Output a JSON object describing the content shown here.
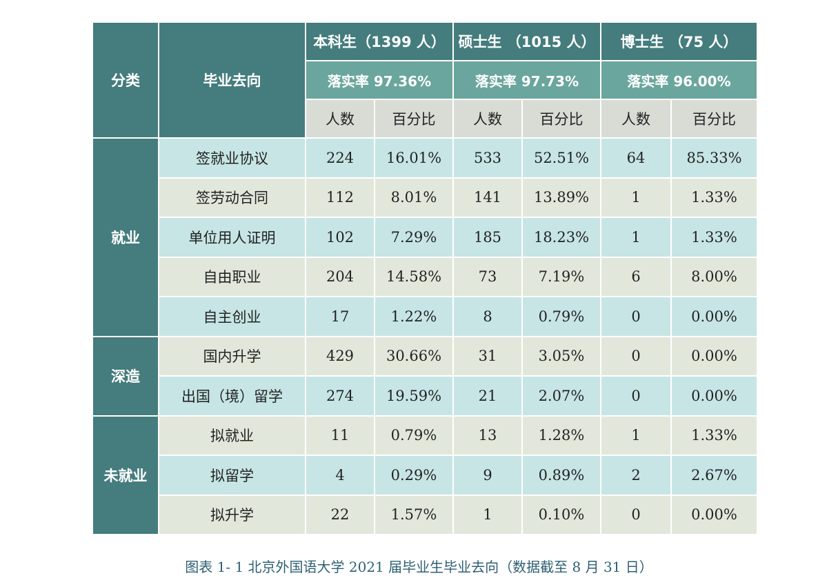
{
  "table": {
    "header": {
      "category": "分类",
      "destination": "毕业去向",
      "groups": [
        {
          "name": "本科生（1399 人）",
          "rate": "落实率 97.36%"
        },
        {
          "name": "硕士生 （1015 人）",
          "rate": "落实率 97.73%"
        },
        {
          "name": "博士生 （75 人）",
          "rate": "落实率 96.00%"
        }
      ],
      "subheaders": [
        "人数",
        "百分比",
        "人数",
        "百分比",
        "人数",
        "百分比"
      ]
    },
    "sections": [
      {
        "category": "就业",
        "rows": [
          {
            "label": "签就业协议",
            "cells": [
              "224",
              "16.01%",
              "533",
              "52.51%",
              "64",
              "85.33%"
            ]
          },
          {
            "label": "签劳动合同",
            "cells": [
              "112",
              "8.01%",
              "141",
              "13.89%",
              "1",
              "1.33%"
            ]
          },
          {
            "label": "单位用人证明",
            "cells": [
              "102",
              "7.29%",
              "185",
              "18.23%",
              "1",
              "1.33%"
            ]
          },
          {
            "label": "自由职业",
            "cells": [
              "204",
              "14.58%",
              "73",
              "7.19%",
              "6",
              "8.00%"
            ]
          },
          {
            "label": "自主创业",
            "cells": [
              "17",
              "1.22%",
              "8",
              "0.79%",
              "0",
              "0.00%"
            ]
          }
        ]
      },
      {
        "category": "深造",
        "rows": [
          {
            "label": "国内升学",
            "cells": [
              "429",
              "30.66%",
              "31",
              "3.05%",
              "0",
              "0.00%"
            ]
          },
          {
            "label": "出国（境）留学",
            "cells": [
              "274",
              "19.59%",
              "21",
              "2.07%",
              "0",
              "0.00%"
            ]
          }
        ]
      },
      {
        "category": "未就业",
        "rows": [
          {
            "label": "拟就业",
            "cells": [
              "11",
              "0.79%",
              "13",
              "1.28%",
              "1",
              "1.33%"
            ]
          },
          {
            "label": "拟留学",
            "cells": [
              "4",
              "0.29%",
              "9",
              "0.89%",
              "2",
              "2.67%"
            ]
          },
          {
            "label": "拟升学",
            "cells": [
              "22",
              "1.57%",
              "1",
              "0.10%",
              "0",
              "0.00%"
            ]
          }
        ]
      }
    ]
  },
  "caption": "图表 1- 1 北京外国语大学 2021 届毕业生毕业去向（数据截至 8 月 31 日）"
}
